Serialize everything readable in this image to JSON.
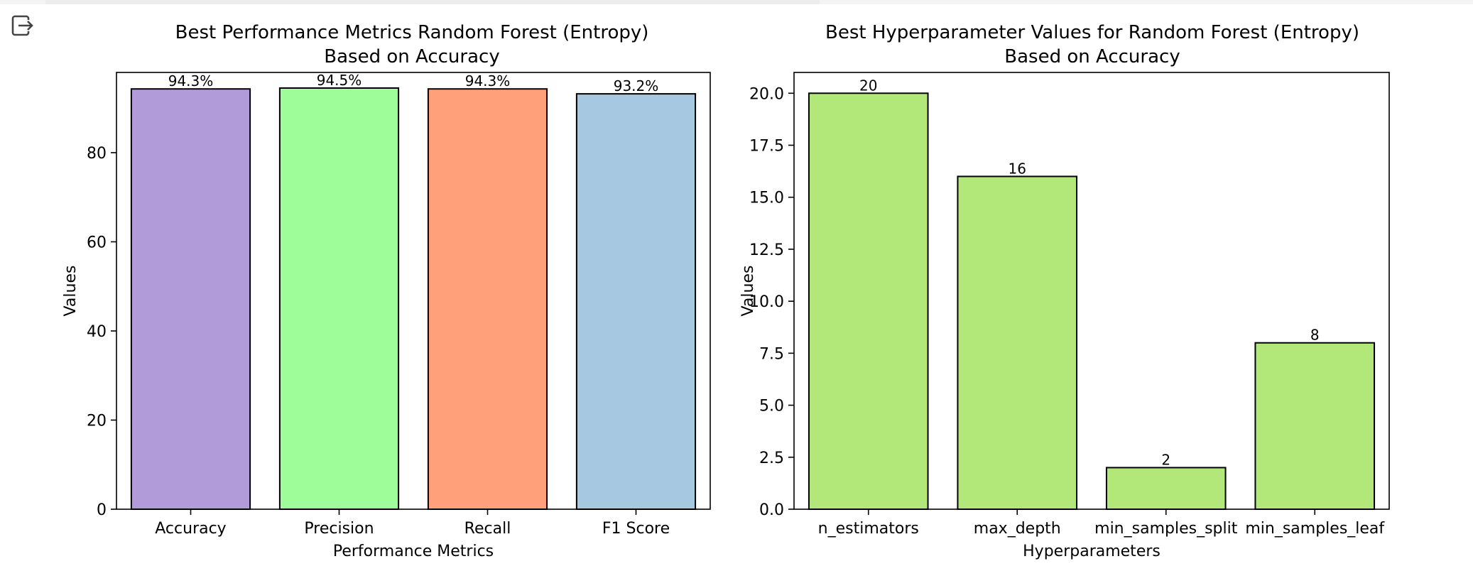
{
  "charts": [
    {
      "chart_data": {
        "type": "bar",
        "title_line1": "Best Performance Metrics Random Forest (Entropy)",
        "title_line2": "Based on Accuracy",
        "xlabel": "Performance Metrics",
        "ylabel": "Values",
        "categories": [
          "Accuracy",
          "Precision",
          "Recall",
          "F1 Score"
        ],
        "values": [
          94.3,
          94.5,
          94.3,
          93.2
        ],
        "value_labels": [
          "94.3%",
          "94.5%",
          "94.3%",
          "93.2%"
        ],
        "colors": [
          "#b19cd9",
          "#9efd98",
          "#ffa07a",
          "#a6c8e0"
        ],
        "ylim": [
          0,
          98
        ],
        "yticks": [
          0,
          20,
          40,
          60,
          80
        ],
        "ytick_labels": [
          "0",
          "20",
          "40",
          "60",
          "80"
        ],
        "grid": false
      }
    },
    {
      "chart_data": {
        "type": "bar",
        "title_line1": "Best Hyperparameter Values for Random Forest (Entropy)",
        "title_line2": "Based on Accuracy",
        "xlabel": "Hyperparameters",
        "ylabel": "Values",
        "categories": [
          "n_estimators",
          "max_depth",
          "min_samples_split",
          "min_samples_leaf"
        ],
        "values": [
          20,
          16,
          2,
          8
        ],
        "value_labels": [
          "20",
          "16",
          "2",
          "8"
        ],
        "colors": [
          "#b2e87a",
          "#b2e87a",
          "#b2e87a",
          "#b2e87a"
        ],
        "ylim": [
          0,
          21
        ],
        "yticks": [
          0,
          2.5,
          5,
          7.5,
          10,
          12.5,
          15,
          17.5,
          20
        ],
        "ytick_labels": [
          "0.0",
          "2.5",
          "5.0",
          "7.5",
          "10.0",
          "12.5",
          "15.0",
          "17.5",
          "20.0"
        ],
        "grid": false
      }
    }
  ]
}
